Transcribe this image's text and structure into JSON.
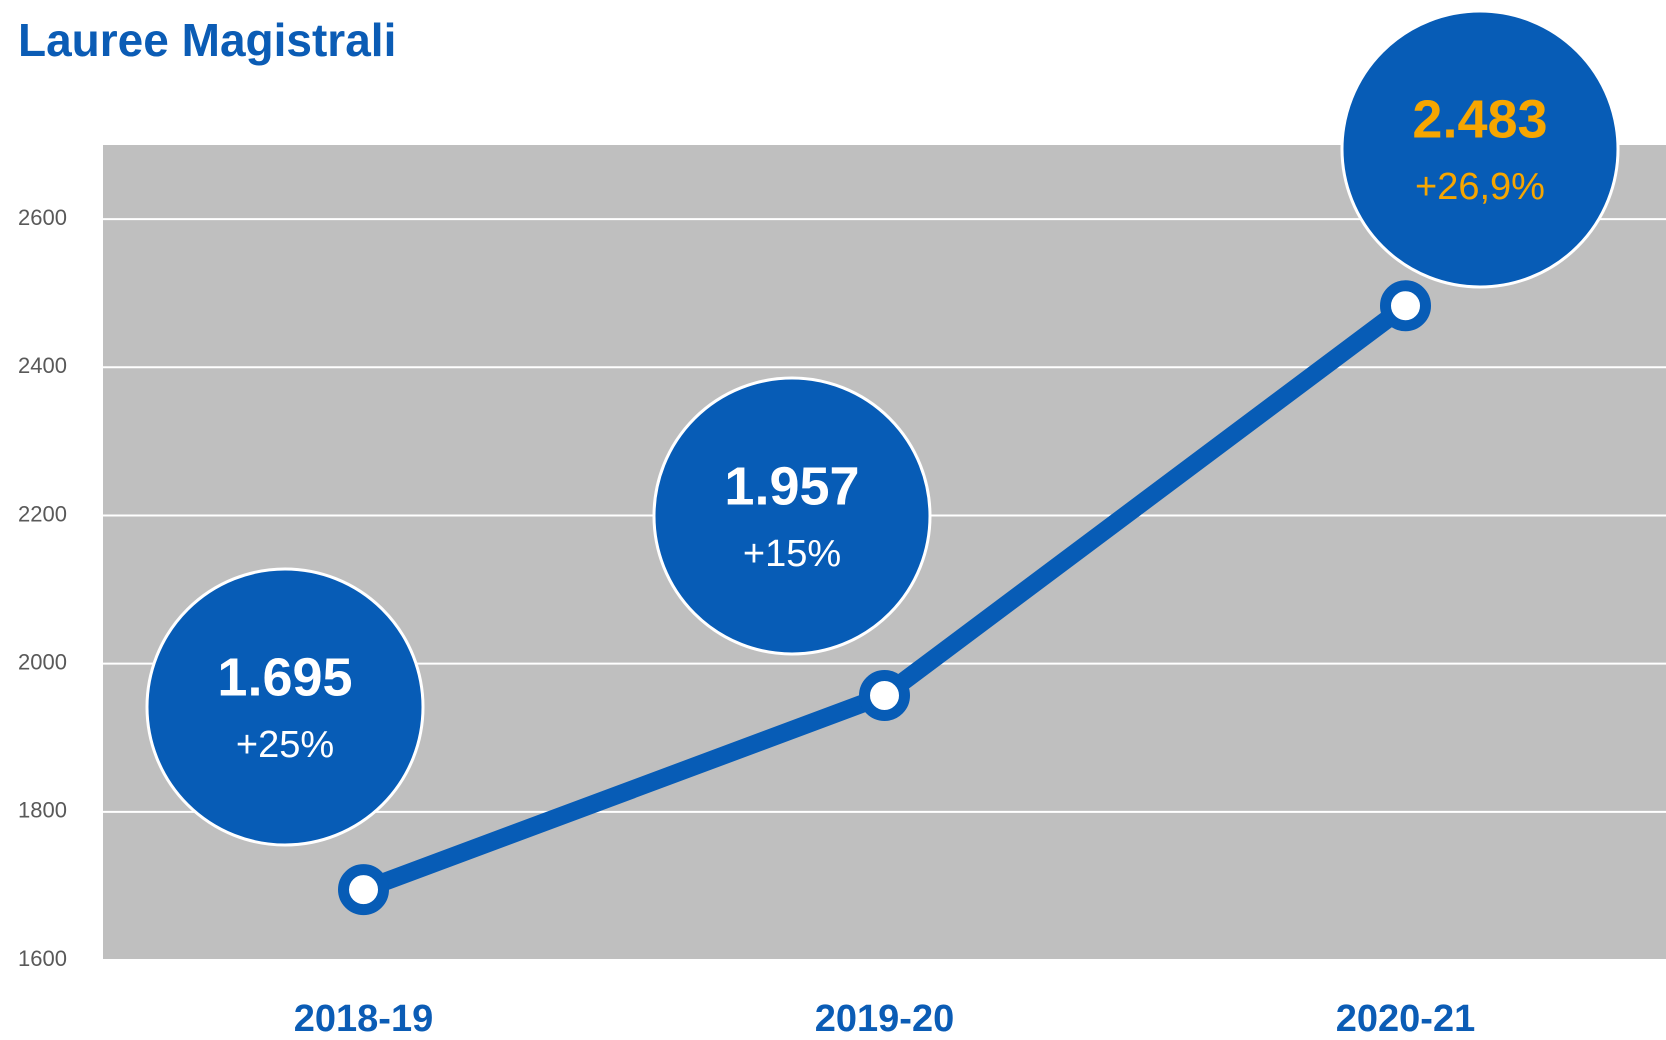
{
  "chart_data": {
    "type": "line",
    "title": "Lauree Magistrali",
    "categories": [
      "2018-19",
      "2019-20",
      "2020-21"
    ],
    "values": [
      1695,
      1957,
      2483
    ],
    "value_labels": [
      "1.695",
      "1.957",
      "2.483"
    ],
    "annotations": [
      "+25%",
      "+15%",
      "+26,9%"
    ],
    "annotation_colors": [
      "#ffffff",
      "#ffffff",
      "#f7a600"
    ],
    "color": "#075cb6",
    "ylim": [
      1600,
      2700
    ],
    "yticks": [
      1600,
      1800,
      2000,
      2200,
      2400,
      2600
    ],
    "grid": true
  }
}
